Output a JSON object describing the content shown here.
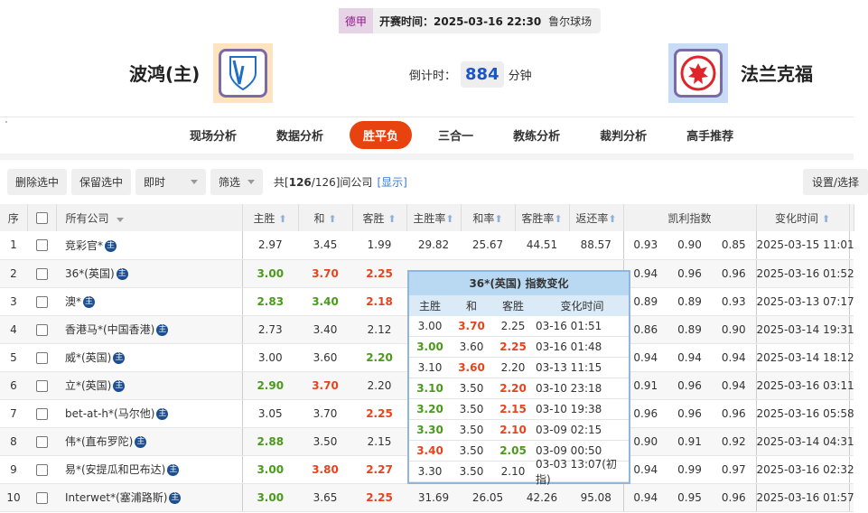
{
  "match": {
    "league": "德甲",
    "kickoff_label": "开赛时间：",
    "kickoff": "2025-03-16 22:30",
    "venue": "鲁尔球场",
    "home": "波鸿(主)",
    "away": "法兰克福",
    "countdown_label": "倒计时：",
    "countdown": "884",
    "countdown_unit": "分钟"
  },
  "tabs": [
    "现场分析",
    "数据分析",
    "胜平负",
    "三合一",
    "教练分析",
    "裁判分析",
    "高手推荐"
  ],
  "active_tab": 2,
  "toolbar": {
    "delete": "删除选中",
    "keep": "保留选中",
    "mode": "即时",
    "filter": "筛选",
    "count_pre": "共[",
    "count_bold": "126",
    "count_post": "/126]间公司",
    "show": "[显示]",
    "settings": "设置/选择"
  },
  "headers": {
    "no": "序",
    "company": "所有公司",
    "home": "主胜",
    "draw": "和",
    "away": "客胜",
    "home_rate": "主胜率",
    "draw_rate": "和率",
    "away_rate": "客胜率",
    "return": "返还率",
    "kelly": "凯利指数",
    "time": "变化时间",
    "main_badge": "主"
  },
  "colors": {
    "up": "#4a9a1c",
    "down": "#e8431c",
    "accent": "#e8420f"
  },
  "rows": [
    {
      "no": "1",
      "company": "竞彩官*",
      "odds": [
        [
          "2.97",
          ""
        ],
        [
          "3.45",
          ""
        ],
        [
          "1.99",
          ""
        ]
      ],
      "rates": [
        "29.82",
        "25.67",
        "44.51",
        "88.57"
      ],
      "kelly": [
        "0.93",
        "0.90",
        "0.85"
      ],
      "time": "2025-03-15 11:01"
    },
    {
      "no": "2",
      "company": "36*(英国)",
      "odds": [
        [
          "3.00",
          "g"
        ],
        [
          "3.70",
          "r"
        ],
        [
          "2.25",
          "r"
        ]
      ],
      "rates": [
        "",
        "",
        "",
        ""
      ],
      "kelly": [
        "0.94",
        "0.96",
        "0.96"
      ],
      "time": "2025-03-16 01:52"
    },
    {
      "no": "3",
      "company": "澳*",
      "odds": [
        [
          "2.83",
          "g"
        ],
        [
          "3.40",
          "g"
        ],
        [
          "2.18",
          "r"
        ]
      ],
      "rates": [
        "",
        "",
        "",
        ""
      ],
      "kelly": [
        "0.89",
        "0.89",
        "0.93"
      ],
      "time": "2025-03-13 07:17"
    },
    {
      "no": "4",
      "company": "香港马*(中国香港)",
      "odds": [
        [
          "2.73",
          ""
        ],
        [
          "3.40",
          ""
        ],
        [
          "2.12",
          ""
        ]
      ],
      "rates": [
        "",
        "",
        "",
        ""
      ],
      "kelly": [
        "0.86",
        "0.89",
        "0.90"
      ],
      "time": "2025-03-14 19:31"
    },
    {
      "no": "5",
      "company": "威*(英国)",
      "odds": [
        [
          "3.00",
          ""
        ],
        [
          "3.60",
          ""
        ],
        [
          "2.20",
          "g"
        ]
      ],
      "rates": [
        "",
        "",
        "",
        ""
      ],
      "kelly": [
        "0.94",
        "0.94",
        "0.94"
      ],
      "time": "2025-03-14 18:12"
    },
    {
      "no": "6",
      "company": "立*(英国)",
      "odds": [
        [
          "2.90",
          "g"
        ],
        [
          "3.70",
          "r"
        ],
        [
          "2.20",
          ""
        ]
      ],
      "rates": [
        "",
        "",
        "",
        ""
      ],
      "kelly": [
        "0.91",
        "0.96",
        "0.94"
      ],
      "time": "2025-03-16 03:11"
    },
    {
      "no": "7",
      "company": "bet-at-h*(马尔他)",
      "odds": [
        [
          "3.05",
          ""
        ],
        [
          "3.70",
          ""
        ],
        [
          "2.25",
          "r"
        ]
      ],
      "rates": [
        "",
        "",
        "",
        ""
      ],
      "kelly": [
        "0.96",
        "0.96",
        "0.96"
      ],
      "time": "2025-03-16 05:58"
    },
    {
      "no": "8",
      "company": "伟*(直布罗陀)",
      "odds": [
        [
          "2.88",
          "g"
        ],
        [
          "3.50",
          ""
        ],
        [
          "2.15",
          ""
        ]
      ],
      "rates": [
        "",
        "",
        "",
        ""
      ],
      "kelly": [
        "0.90",
        "0.91",
        "0.92"
      ],
      "time": "2025-03-14 04:31"
    },
    {
      "no": "9",
      "company": "易*(安提瓜和巴布达)",
      "odds": [
        [
          "3.00",
          "g"
        ],
        [
          "3.80",
          "r"
        ],
        [
          "2.27",
          "r"
        ]
      ],
      "rates": [
        "",
        "",
        "",
        ""
      ],
      "kelly": [
        "0.94",
        "0.99",
        "0.97"
      ],
      "time": "2025-03-16 02:32"
    },
    {
      "no": "10",
      "company": "Interwet*(塞浦路斯)",
      "odds": [
        [
          "3.00",
          "g"
        ],
        [
          "3.65",
          ""
        ],
        [
          "2.25",
          "r"
        ]
      ],
      "rates": [
        "31.69",
        "26.05",
        "42.26",
        "95.08"
      ],
      "kelly": [
        "0.94",
        "0.95",
        "0.96"
      ],
      "time": "2025-03-16 01:57"
    }
  ],
  "popup": {
    "title": "36*(英国) 指数变化",
    "headers": [
      "主胜",
      "和",
      "客胜",
      "变化时间"
    ],
    "rows": [
      [
        [
          "3.00",
          ""
        ],
        [
          "3.70",
          "r"
        ],
        [
          "2.25",
          ""
        ],
        "03-16 01:51"
      ],
      [
        [
          "3.00",
          "g"
        ],
        [
          "3.60",
          ""
        ],
        [
          "2.25",
          "r"
        ],
        "03-16 01:48"
      ],
      [
        [
          "3.10",
          ""
        ],
        [
          "3.60",
          "r"
        ],
        [
          "2.20",
          ""
        ],
        "03-13 11:15"
      ],
      [
        [
          "3.10",
          "g"
        ],
        [
          "3.50",
          ""
        ],
        [
          "2.20",
          "r"
        ],
        "03-10 23:18"
      ],
      [
        [
          "3.20",
          "g"
        ],
        [
          "3.50",
          ""
        ],
        [
          "2.15",
          "r"
        ],
        "03-10 19:38"
      ],
      [
        [
          "3.30",
          "g"
        ],
        [
          "3.50",
          ""
        ],
        [
          "2.10",
          "r"
        ],
        "03-09 02:15"
      ],
      [
        [
          "3.40",
          "r"
        ],
        [
          "3.50",
          ""
        ],
        [
          "2.05",
          "g"
        ],
        "03-09 00:50"
      ],
      [
        [
          "3.30",
          ""
        ],
        [
          "3.50",
          ""
        ],
        [
          "2.10",
          ""
        ],
        "03-03 13:07(初指)"
      ]
    ]
  }
}
